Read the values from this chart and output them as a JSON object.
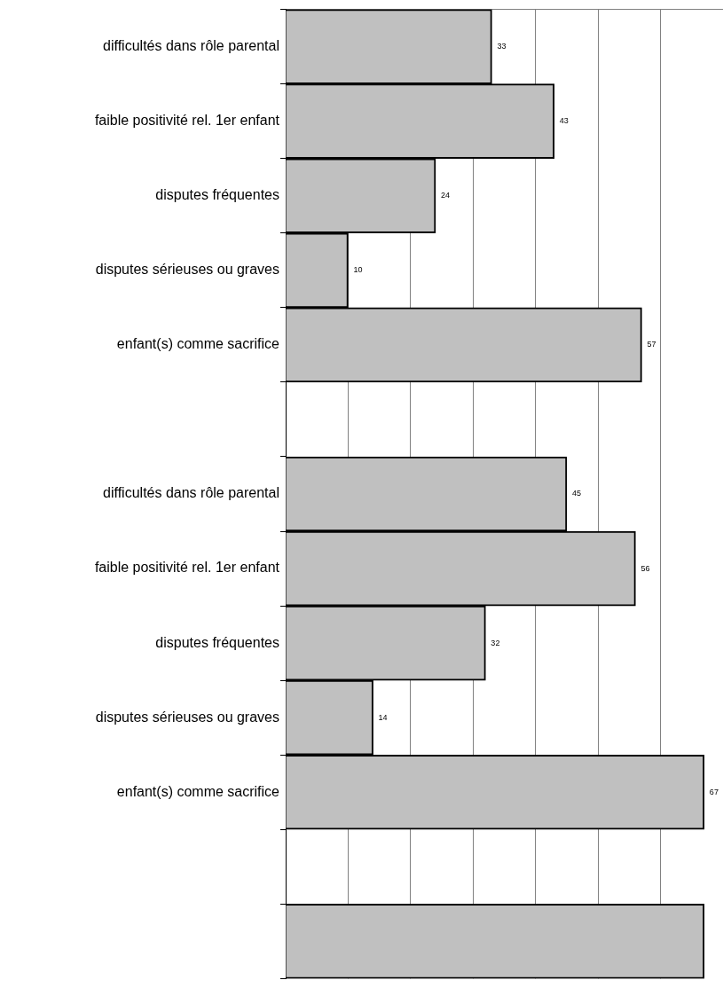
{
  "chart_data": {
    "type": "bar",
    "orientation": "horizontal",
    "categories": [
      "difficultés dans rôle parental",
      "faible positivité rel. 1er enfant",
      "disputes fréquentes",
      "disputes sérieuses ou graves",
      "enfant(s) comme sacrifice",
      null,
      "difficultés dans rôle parental",
      "faible positivité rel. 1er enfant",
      "disputes fréquentes",
      "disputes sérieuses ou graves",
      "enfant(s) comme sacrifice",
      null,
      null
    ],
    "values": [
      33,
      43,
      24,
      10,
      57,
      null,
      45,
      56,
      32,
      14,
      67,
      null,
      67
    ],
    "value_labels": [
      "33",
      "43",
      "24",
      "10",
      "57",
      null,
      "45",
      "56",
      "32",
      "14",
      "67",
      null,
      null
    ],
    "color": "#c0c0c0",
    "grid": "x",
    "tick_labels": "y"
  }
}
